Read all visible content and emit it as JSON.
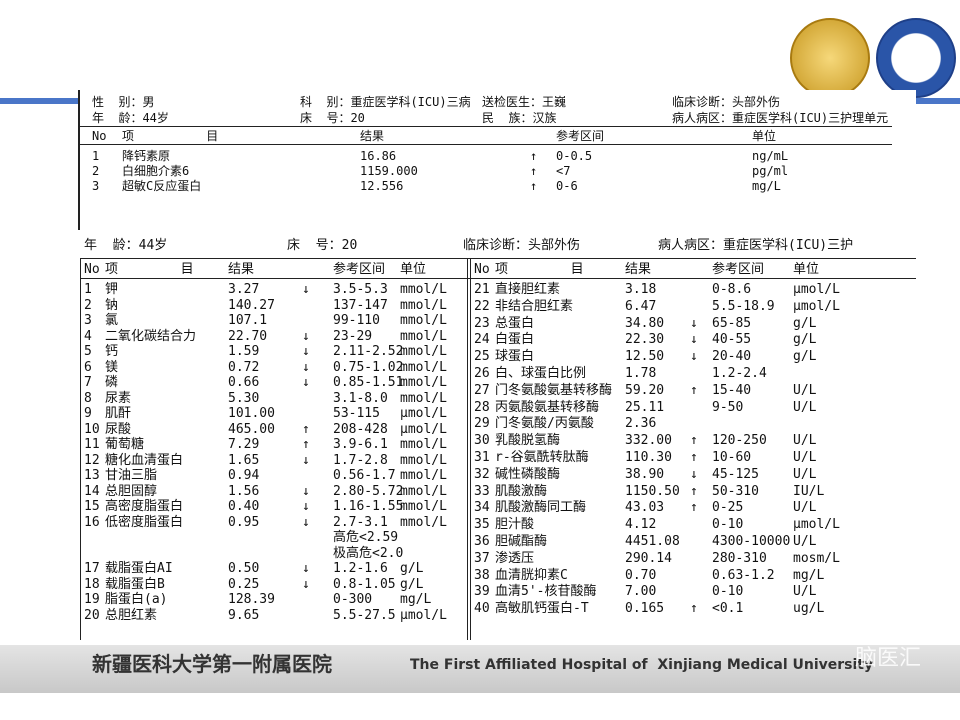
{
  "report1": {
    "fields": [
      "性  别：男",
      "科  别：重症医学科(ICU)三病",
      "送检医生：王巍",
      "临床诊断：头部外伤",
      "年  龄：44岁",
      "床  号：20",
      "民  族：汉族",
      "病人病区：重症医学科(ICU)三护理单元"
    ],
    "columns": [
      "No",
      "项          目",
      "结果",
      "参考区间",
      "单位"
    ],
    "rows": [
      {
        "no": "1",
        "item": "降钙素原",
        "result": "16.86",
        "flag": "↑",
        "range": "0-0.5",
        "unit": "ng/mL"
      },
      {
        "no": "2",
        "item": "白细胞介素6",
        "result": "1159.000",
        "flag": "↑",
        "range": "<7",
        "unit": "pg/ml"
      },
      {
        "no": "3",
        "item": "超敏C反应蛋白",
        "result": "12.556",
        "flag": "↑",
        "range": "0-6",
        "unit": "mg/L"
      }
    ]
  },
  "report2": {
    "fields": [
      "年  龄：44岁",
      "床  号：20",
      "临床诊断：头部外伤",
      "病人病区：重症医学科(ICU)三护"
    ],
    "columns": [
      "No",
      "项        目",
      "结果",
      "参考区间",
      "单位"
    ],
    "left_rows": [
      {
        "no": "1",
        "item": "钾",
        "result": "3.27",
        "flag": "↓",
        "range": "3.5-5.3",
        "unit": "mmol/L"
      },
      {
        "no": "2",
        "item": "钠",
        "result": "140.27",
        "range": "137-147",
        "unit": "mmol/L"
      },
      {
        "no": "3",
        "item": "氯",
        "result": "107.1",
        "range": "99-110",
        "unit": "mmol/L"
      },
      {
        "no": "4",
        "item": "二氧化碳结合力",
        "result": "22.70",
        "flag": "↓",
        "range": "23-29",
        "unit": "mmol/L"
      },
      {
        "no": "5",
        "item": "钙",
        "result": "1.59",
        "flag": "↓",
        "range": "2.11-2.52",
        "unit": "mmol/L"
      },
      {
        "no": "6",
        "item": "镁",
        "result": "0.72",
        "flag": "↓",
        "range": "0.75-1.02",
        "unit": "mmol/L"
      },
      {
        "no": "7",
        "item": "磷",
        "result": "0.66",
        "flag": "↓",
        "range": "0.85-1.51",
        "unit": "mmol/L"
      },
      {
        "no": "8",
        "item": "尿素",
        "result": "5.30",
        "range": "3.1-8.0",
        "unit": "mmol/L"
      },
      {
        "no": "9",
        "item": "肌酐",
        "result": "101.00",
        "range": "53-115",
        "unit": "μmol/L"
      },
      {
        "no": "10",
        "item": "尿酸",
        "result": "465.00",
        "flag": "↑",
        "range": "208-428",
        "unit": "μmol/L"
      },
      {
        "no": "11",
        "item": "葡萄糖",
        "result": "7.29",
        "flag": "↑",
        "range": "3.9-6.1",
        "unit": "mmol/L"
      },
      {
        "no": "12",
        "item": "糖化血清蛋白",
        "result": "1.65",
        "flag": "↓",
        "range": "1.7-2.8",
        "unit": "mmol/L"
      },
      {
        "no": "13",
        "item": "甘油三脂",
        "result": "0.94",
        "range": "0.56-1.7",
        "unit": "mmol/L"
      },
      {
        "no": "14",
        "item": "总胆固醇",
        "result": "1.56",
        "flag": "↓",
        "range": "2.80-5.72",
        "unit": "mmol/L"
      },
      {
        "no": "15",
        "item": "高密度脂蛋白",
        "result": "0.40",
        "flag": "↓",
        "range": "1.16-1.55",
        "unit": "mmol/L"
      },
      {
        "no": "16",
        "item": "低密度脂蛋白",
        "result": "0.95",
        "flag": "↓",
        "range": "2.7-3.1",
        "unit": "mmol/L"
      },
      {
        "range": "高危<2.59"
      },
      {
        "range": "极高危<2.0"
      },
      {
        "no": "17",
        "item": "载脂蛋白AI",
        "result": "0.50",
        "flag": "↓",
        "range": "1.2-1.6",
        "unit": "g/L"
      },
      {
        "no": "18",
        "item": "载脂蛋白B",
        "result": "0.25",
        "flag": "↓",
        "range": "0.8-1.05",
        "unit": "g/L"
      },
      {
        "no": "19",
        "item": "脂蛋白(a)",
        "result": "128.39",
        "range": "0-300",
        "unit": "mg/L"
      },
      {
        "no": "20",
        "item": "总胆红素",
        "result": "9.65",
        "range": "5.5-27.5",
        "unit": "μmol/L"
      }
    ],
    "right_rows": [
      {
        "no": "21",
        "item": "直接胆红素",
        "result": "3.18",
        "range": "0-8.6",
        "unit": "μmol/L"
      },
      {
        "no": "22",
        "item": "非结合胆红素",
        "result": "6.47",
        "range": "5.5-18.9",
        "unit": "μmol/L"
      },
      {
        "no": "23",
        "item": "总蛋白",
        "result": "34.80",
        "flag": "↓",
        "range": "65-85",
        "unit": "g/L"
      },
      {
        "no": "24",
        "item": "白蛋白",
        "result": "22.30",
        "flag": "↓",
        "range": "40-55",
        "unit": "g/L"
      },
      {
        "no": "25",
        "item": "球蛋白",
        "result": "12.50",
        "flag": "↓",
        "range": "20-40",
        "unit": "g/L"
      },
      {
        "no": "26",
        "item": "白、球蛋白比例",
        "result": "1.78",
        "range": "1.2-2.4"
      },
      {
        "no": "27",
        "item": "门冬氨酸氨基转移酶",
        "result": "59.20",
        "flag": "↑",
        "range": "15-40",
        "unit": "U/L"
      },
      {
        "no": "28",
        "item": "丙氨酸氨基转移酶",
        "result": "25.11",
        "range": "9-50",
        "unit": "U/L"
      },
      {
        "no": "29",
        "item": "门冬氨酸/丙氨酸",
        "result": "2.36"
      },
      {
        "no": "30",
        "item": "乳酸脱氢酶",
        "result": "332.00",
        "flag": "↑",
        "range": "120-250",
        "unit": "U/L"
      },
      {
        "no": "31",
        "item": "r-谷氨酰转肽酶",
        "result": "110.30",
        "flag": "↑",
        "range": "10-60",
        "unit": "U/L"
      },
      {
        "no": "32",
        "item": "碱性磷酸酶",
        "result": "38.90",
        "flag": "↓",
        "range": "45-125",
        "unit": "U/L"
      },
      {
        "no": "33",
        "item": "肌酸激酶",
        "result": "1150.50",
        "flag": "↑",
        "range": "50-310",
        "unit": "IU/L"
      },
      {
        "no": "34",
        "item": "肌酸激酶同工酶",
        "result": "43.03",
        "flag": "↑",
        "range": "0-25",
        "unit": "U/L"
      },
      {
        "no": "35",
        "item": "胆汁酸",
        "result": "4.12",
        "range": "0-10",
        "unit": "μmol/L"
      },
      {
        "no": "36",
        "item": "胆碱酯酶",
        "result": "4451.08",
        "range": "4300-10000",
        "unit": "U/L"
      },
      {
        "no": "37",
        "item": "渗透压",
        "result": "290.14",
        "range": "280-310",
        "unit": "mosm/L"
      },
      {
        "no": "38",
        "item": "血清胱抑素C",
        "result": "0.70",
        "range": "0.63-1.2",
        "unit": "mg/L"
      },
      {
        "no": "39",
        "item": "血清5'-核苷酸酶",
        "result": "7.00",
        "range": "0-10",
        "unit": "U/L"
      },
      {
        "no": "40",
        "item": "高敏肌钙蛋白-T",
        "result": "0.165",
        "flag": "↑",
        "range": "<0.1",
        "unit": "ug/L"
      }
    ]
  },
  "footer": {
    "cn": "新疆医科大学第一附属医院",
    "en": "The First Affiliated Hospital of  Xinjiang Medical University"
  },
  "watermark": "脑医汇"
}
